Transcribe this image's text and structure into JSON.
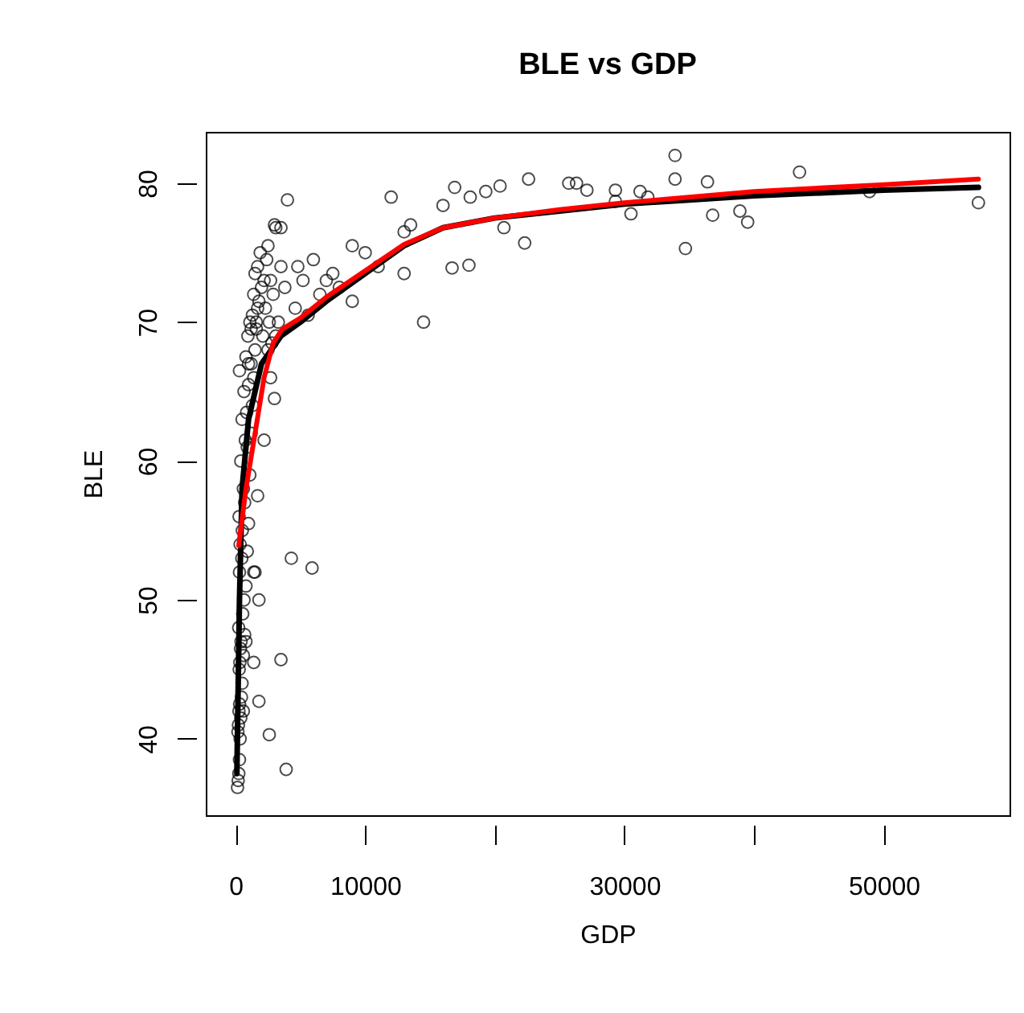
{
  "chart_data": {
    "type": "scatter",
    "title": "BLE vs GDP",
    "xlabel": "GDP",
    "ylabel": "BLE",
    "xlim": [
      -2300,
      59700
    ],
    "ylim": [
      34.5,
      83.7
    ],
    "xticks": [
      0,
      10000,
      {
        "value": 20000,
        "label": null
      },
      30000,
      {
        "value": 40000,
        "label": null
      },
      50000
    ],
    "yticks": [
      40,
      50,
      60,
      70,
      80
    ],
    "grid": false,
    "series": [
      {
        "color": "#000000",
        "marker": "circle",
        "x": [
          150,
          200,
          250,
          300,
          350,
          180,
          220,
          400,
          260,
          310,
          450,
          500,
          280,
          330,
          600,
          380,
          420,
          700,
          240,
          550,
          650,
          800,
          300,
          480,
          900,
          350,
          520,
          1000,
          270,
          700,
          600,
          1100,
          400,
          900,
          750,
          1200,
          500,
          850,
          1300,
          650,
          1000,
          1400,
          300,
          1200,
          800,
          1500,
          950,
          1600,
          1100,
          1300,
          1700,
          1800,
          1400,
          2000,
          2200,
          1500,
          1700,
          2400,
          1900,
          2600,
          2100,
          2800,
          1000,
          1200,
          1600,
          2300,
          2500,
          2900,
          3100,
          3300,
          2700,
          3500,
          1800,
          1400,
          600,
          800,
          1800,
          1400,
          2600,
          3900,
          3500,
          4300,
          5900,
          1500,
          1700,
          2200,
          3000,
          2700,
          3100,
          4000,
          3000,
          3500,
          2500,
          3800,
          4600,
          5200,
          4800,
          5600,
          6000,
          7000,
          9000,
          9000,
          8000,
          10000,
          11000,
          12000,
          13000,
          13500,
          14500,
          13000,
          6500,
          7500,
          16000,
          16900,
          18100,
          19300,
          20400,
          20700,
          22300,
          22600,
          16700,
          18000,
          25700,
          26300,
          27100,
          29300,
          29300,
          30500,
          31200,
          31800,
          33900,
          33900,
          34700,
          36400,
          36800,
          38900,
          39500,
          43500,
          48900,
          57300
        ],
        "values": [
          36.5,
          37,
          37.5,
          38.5,
          40,
          40.5,
          41,
          41.5,
          42,
          42.5,
          43,
          44,
          45,
          45.5,
          46,
          46.5,
          47,
          47.5,
          48,
          49,
          50,
          51,
          52,
          53,
          53.5,
          54,
          55,
          55.5,
          56,
          57,
          58,
          59,
          60,
          61,
          61.5,
          62,
          63,
          63.5,
          64,
          65,
          65.5,
          66,
          66.5,
          67,
          67.5,
          68,
          69,
          69.5,
          70,
          70.5,
          71,
          71.5,
          72,
          72.5,
          73,
          73.5,
          74,
          74.5,
          75,
          70,
          69,
          68.5,
          67,
          69.5,
          70,
          71,
          68,
          72,
          69,
          70,
          73,
          74,
          42.7,
          45.5,
          42,
          47,
          50,
          52,
          40.3,
          37.8,
          45.7,
          53,
          52.3,
          52,
          57.5,
          61.5,
          64.5,
          66,
          76.8,
          78.8,
          77,
          76.8,
          75.5,
          72.5,
          71,
          73,
          74,
          70.5,
          74.5,
          73,
          75.5,
          71.5,
          72.5,
          75,
          74,
          79,
          76.5,
          77,
          70,
          73.5,
          72,
          73.5,
          78.4,
          79.7,
          79,
          79.4,
          79.8,
          76.8,
          75.7,
          80.3,
          73.9,
          74.1,
          80,
          80,
          79.5,
          79.5,
          78.7,
          77.8,
          79.4,
          79,
          82,
          80.3,
          75.3,
          80.1,
          77.7,
          78,
          77.2,
          80.8,
          79.4,
          78.6
        ]
      },
      {
        "type": "line",
        "color": "#000000",
        "x": [
          100,
          300,
          500,
          1000,
          2000,
          3500,
          5000,
          7000,
          10000,
          13000,
          16000,
          20000,
          25000,
          30000,
          35000,
          40000,
          50000,
          57300
        ],
        "values": [
          37.5,
          50,
          58,
          63,
          67,
          69,
          70,
          71.5,
          73.5,
          75.5,
          76.8,
          77.5,
          78,
          78.5,
          78.8,
          79.1,
          79.5,
          79.7
        ]
      },
      {
        "type": "line",
        "color": "#ff0000",
        "x": [
          240,
          800,
          1500,
          2200,
          2900,
          3600,
          5000,
          7000,
          10000,
          13000,
          16000,
          20000,
          25000,
          30000,
          35000,
          40000,
          50000,
          57300
        ],
        "values": [
          53.9,
          58,
          62,
          66,
          68.5,
          69.5,
          70.3,
          71.8,
          73.7,
          75.6,
          76.8,
          77.5,
          78.1,
          78.6,
          79,
          79.4,
          79.9,
          80.3
        ]
      }
    ]
  }
}
